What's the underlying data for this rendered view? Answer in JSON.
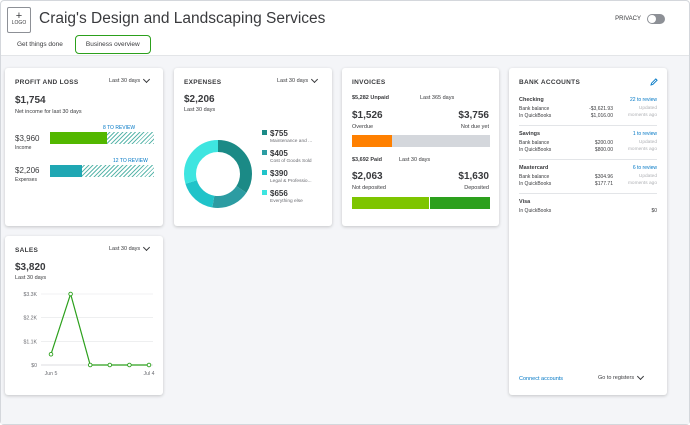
{
  "header": {
    "logo_label": "LOGO",
    "company_name": "Craig's Design and Landscaping Services",
    "privacy_label": "PRIVACY"
  },
  "tabs": [
    {
      "label": "Get things done",
      "active": false
    },
    {
      "label": "Business overview",
      "active": true
    }
  ],
  "profit_loss": {
    "title": "PROFIT AND LOSS",
    "period": "Last 30 days",
    "net_income": "$1,754",
    "net_income_label": "Net income for last 30 days",
    "income_value": "$3,960",
    "income_label": "Income",
    "income_review": "8 TO REVIEW",
    "income_fraction": 0.55,
    "expenses_value": "$2,206",
    "expenses_label": "Expenses",
    "expenses_review": "12 TO REVIEW",
    "expenses_fraction": 0.31
  },
  "expenses": {
    "title": "EXPENSES",
    "period": "Last 30 days",
    "total": "$2,206",
    "total_label": "Last 30 days",
    "items": [
      {
        "value": "$755",
        "label": "Maintenance and ...",
        "amount": 755,
        "color": "#1b8a86"
      },
      {
        "value": "$405",
        "label": "Cost of Goods Sold",
        "amount": 405,
        "color": "#2c9ca2"
      },
      {
        "value": "$390",
        "label": "Legal & Professio...",
        "amount": 390,
        "color": "#20c3c9"
      },
      {
        "value": "$656",
        "label": "Everything else",
        "amount": 656,
        "color": "#3ee5e0"
      }
    ]
  },
  "invoices": {
    "title": "INVOICES",
    "unpaid_label": "$5,282 Unpaid",
    "unpaid_period": "Last 365 days",
    "overdue_value": "$1,526",
    "overdue_label": "Overdue",
    "not_due_value": "$3,756",
    "not_due_label": "Not due yet",
    "overdue_fraction": 0.289,
    "paid_label": "$3,692 Paid",
    "paid_period": "Last 30 days",
    "not_deposited_value": "$2,063",
    "not_deposited_label": "Not deposited",
    "deposited_value": "$1,630",
    "deposited_label": "Deposited",
    "not_deposited_fraction": 0.559,
    "colors": {
      "overdue": "#ff8000",
      "not_due": "#d4d7dc",
      "not_deposited": "#7ec500",
      "deposited": "#2ca01c"
    }
  },
  "bank_accounts": {
    "title": "BANK ACCOUNTS",
    "accounts": [
      {
        "name": "Checking",
        "review": "22 to review",
        "bank_label": "Bank balance",
        "bank_value": "-$3,621.93",
        "qb_label": "In QuickBooks",
        "qb_value": "$1,016.00",
        "updated": "Updated",
        "updated_when": "moments ago"
      },
      {
        "name": "Savings",
        "review": "1 to review",
        "bank_label": "Bank balance",
        "bank_value": "$200.00",
        "qb_label": "In QuickBooks",
        "qb_value": "$800.00",
        "updated": "Updated",
        "updated_when": "moments ago"
      },
      {
        "name": "Mastercard",
        "review": "6 to review",
        "bank_label": "Bank balance",
        "bank_value": "$304.96",
        "qb_label": "In QuickBooks",
        "qb_value": "$177.71",
        "updated": "Updated",
        "updated_when": "moments ago"
      },
      {
        "name": "Visa",
        "review": "",
        "bank_label": "",
        "bank_value": "",
        "qb_label": "In QuickBooks",
        "qb_value": "$0",
        "updated": "",
        "updated_when": ""
      }
    ],
    "connect_label": "Connect accounts",
    "registers_label": "Go to registers"
  },
  "sales": {
    "title": "SALES",
    "period": "Last 30 days",
    "total": "$3,820",
    "total_label": "Last 30 days"
  },
  "chart_data": {
    "type": "line",
    "title": "",
    "x": [
      "Jun 5",
      "",
      "",
      "",
      "",
      "Jul 4"
    ],
    "x_tick_labels": [
      "Jun 5",
      "Jul 4"
    ],
    "y_tick_labels": [
      "$0",
      "$1.1K",
      "$2.2K",
      "$3.3K"
    ],
    "ylim": [
      0,
      3300
    ],
    "series": [
      {
        "values": [
          500,
          3300,
          0,
          0,
          0,
          0
        ],
        "color": "#2ca01c"
      }
    ],
    "grid": true
  }
}
